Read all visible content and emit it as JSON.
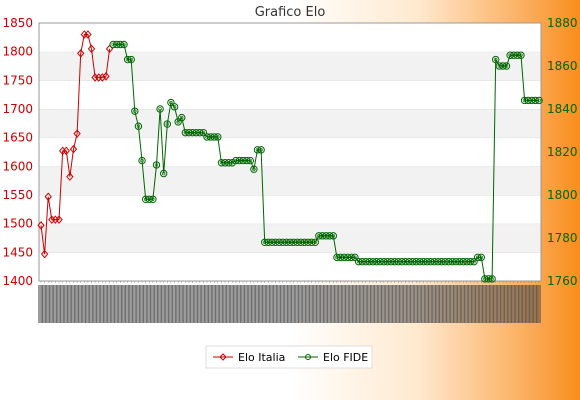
{
  "chart_data": {
    "type": "line",
    "title": "Grafico Elo",
    "y_left": {
      "min": 1400,
      "max": 1850,
      "ticks": [
        1400,
        1450,
        1500,
        1550,
        1600,
        1650,
        1700,
        1750,
        1800,
        1850
      ],
      "color": "#cc0000"
    },
    "y_right": {
      "min": 1760,
      "max": 1880,
      "ticks": [
        1760,
        1780,
        1800,
        1820,
        1840,
        1860,
        1880
      ],
      "color": "#006600"
    },
    "grid": "horizontal bands",
    "legend_position": "bottom",
    "x_tick_labels_legible": false,
    "series": [
      {
        "name": "Elo Italia",
        "axis": "left",
        "color": "#cc0000",
        "marker": "diamond",
        "values": [
          1497,
          1447,
          1547,
          1507,
          1507,
          1507,
          1627,
          1627,
          1582,
          1630,
          1657,
          1797,
          1830,
          1830,
          1805,
          1755,
          1755,
          1755,
          1757,
          1805
        ]
      },
      {
        "name": "Elo FIDE",
        "axis": "right",
        "color": "#006600",
        "marker": "circle",
        "start_index": 20,
        "values": [
          1870,
          1870,
          1870,
          1870,
          1863,
          1863,
          1839,
          1832,
          1816,
          1798,
          1798,
          1798,
          1814,
          1840,
          1810,
          1833,
          1843,
          1841,
          1834,
          1836,
          1829,
          1829,
          1829,
          1829,
          1829,
          1829,
          1827,
          1827,
          1827,
          1827,
          1815,
          1815,
          1815,
          1815,
          1816,
          1816,
          1816,
          1816,
          1816,
          1812,
          1821,
          1821,
          1778,
          1778,
          1778,
          1778,
          1778,
          1778,
          1778,
          1778,
          1778,
          1778,
          1778,
          1778,
          1778,
          1778,
          1778,
          1781,
          1781,
          1781,
          1781,
          1781,
          1771,
          1771,
          1771,
          1771,
          1771,
          1771,
          1769,
          1769,
          1769,
          1769,
          1769,
          1769,
          1769,
          1769,
          1769,
          1769,
          1769,
          1769,
          1769,
          1769,
          1769,
          1769,
          1769,
          1769,
          1769,
          1769,
          1769,
          1769,
          1769,
          1769,
          1769,
          1769,
          1769,
          1769,
          1769,
          1769,
          1769,
          1769,
          1769,
          1771,
          1771,
          1761,
          1761,
          1761,
          1863,
          1860,
          1860,
          1860,
          1865,
          1865,
          1865,
          1865,
          1844,
          1844,
          1844,
          1844,
          1844
        ]
      }
    ]
  }
}
